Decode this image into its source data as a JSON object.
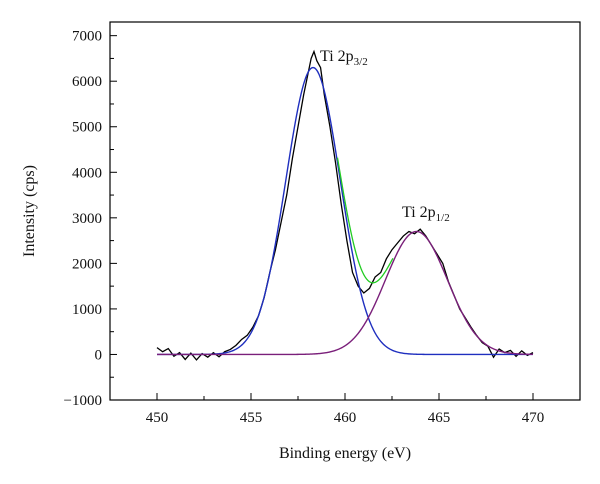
{
  "chart_data": {
    "type": "line",
    "title": "",
    "xlabel": "Binding energy (eV)",
    "ylabel": "Intensity (cps)",
    "xlim": [
      447.5,
      472.5
    ],
    "ylim": [
      -1000,
      7300
    ],
    "x_ticks": [
      450,
      455,
      460,
      465,
      470
    ],
    "x_tick_labels": [
      "450",
      "455",
      "460",
      "465",
      "470"
    ],
    "y_ticks": [
      -1000,
      0,
      1000,
      2000,
      3000,
      4000,
      5000,
      6000,
      7000
    ],
    "y_tick_labels": [
      "−1000",
      "0",
      "1000",
      "2000",
      "3000",
      "4000",
      "5000",
      "6000",
      "7000"
    ],
    "grid": false,
    "legend": "none",
    "peaks": [
      {
        "label_main": "Ti 2p",
        "label_sub": "3/2",
        "position": 458.3,
        "height": 6300,
        "sigma": 1.45,
        "color": "#1f2fbf"
      },
      {
        "label_main": "Ti 2p",
        "label_sub": "1/2",
        "position": 463.8,
        "height": 2700,
        "sigma": 1.65,
        "color": "#7a1f7a"
      }
    ],
    "envelope_color": "#22cc22",
    "raw_color": "#000000",
    "raw_points": [
      [
        450.0,
        150
      ],
      [
        450.3,
        60
      ],
      [
        450.6,
        130
      ],
      [
        450.9,
        -40
      ],
      [
        451.2,
        40
      ],
      [
        451.5,
        -110
      ],
      [
        451.8,
        30
      ],
      [
        452.1,
        -120
      ],
      [
        452.4,
        20
      ],
      [
        452.7,
        -60
      ],
      [
        453.0,
        40
      ],
      [
        453.3,
        -50
      ],
      [
        453.6,
        60
      ],
      [
        453.9,
        110
      ],
      [
        454.2,
        200
      ],
      [
        454.5,
        330
      ],
      [
        454.8,
        420
      ],
      [
        455.1,
        600
      ],
      [
        455.4,
        850
      ],
      [
        455.7,
        1250
      ],
      [
        456.0,
        1800
      ],
      [
        456.3,
        2300
      ],
      [
        456.6,
        2900
      ],
      [
        456.9,
        3500
      ],
      [
        457.2,
        4300
      ],
      [
        457.5,
        5000
      ],
      [
        457.8,
        5700
      ],
      [
        458.0,
        6100
      ],
      [
        458.2,
        6500
      ],
      [
        458.35,
        6650
      ],
      [
        458.5,
        6450
      ],
      [
        458.7,
        6300
      ],
      [
        458.9,
        5700
      ],
      [
        459.2,
        5000
      ],
      [
        459.5,
        4200
      ],
      [
        459.8,
        3300
      ],
      [
        460.1,
        2500
      ],
      [
        460.4,
        1800
      ],
      [
        460.7,
        1500
      ],
      [
        461.0,
        1350
      ],
      [
        461.3,
        1450
      ],
      [
        461.6,
        1700
      ],
      [
        461.9,
        1800
      ],
      [
        462.2,
        2100
      ],
      [
        462.5,
        2300
      ],
      [
        462.8,
        2450
      ],
      [
        463.1,
        2600
      ],
      [
        463.4,
        2700
      ],
      [
        463.7,
        2650
      ],
      [
        464.0,
        2750
      ],
      [
        464.3,
        2600
      ],
      [
        464.6,
        2400
      ],
      [
        464.9,
        2200
      ],
      [
        465.2,
        2000
      ],
      [
        465.5,
        1600
      ],
      [
        465.8,
        1300
      ],
      [
        466.1,
        1000
      ],
      [
        466.4,
        800
      ],
      [
        466.7,
        600
      ],
      [
        467.0,
        420
      ],
      [
        467.3,
        260
      ],
      [
        467.6,
        180
      ],
      [
        467.9,
        -60
      ],
      [
        468.2,
        120
      ],
      [
        468.5,
        40
      ],
      [
        468.8,
        90
      ],
      [
        469.1,
        -40
      ],
      [
        469.4,
        80
      ],
      [
        469.7,
        -20
      ],
      [
        470.0,
        40
      ]
    ]
  }
}
